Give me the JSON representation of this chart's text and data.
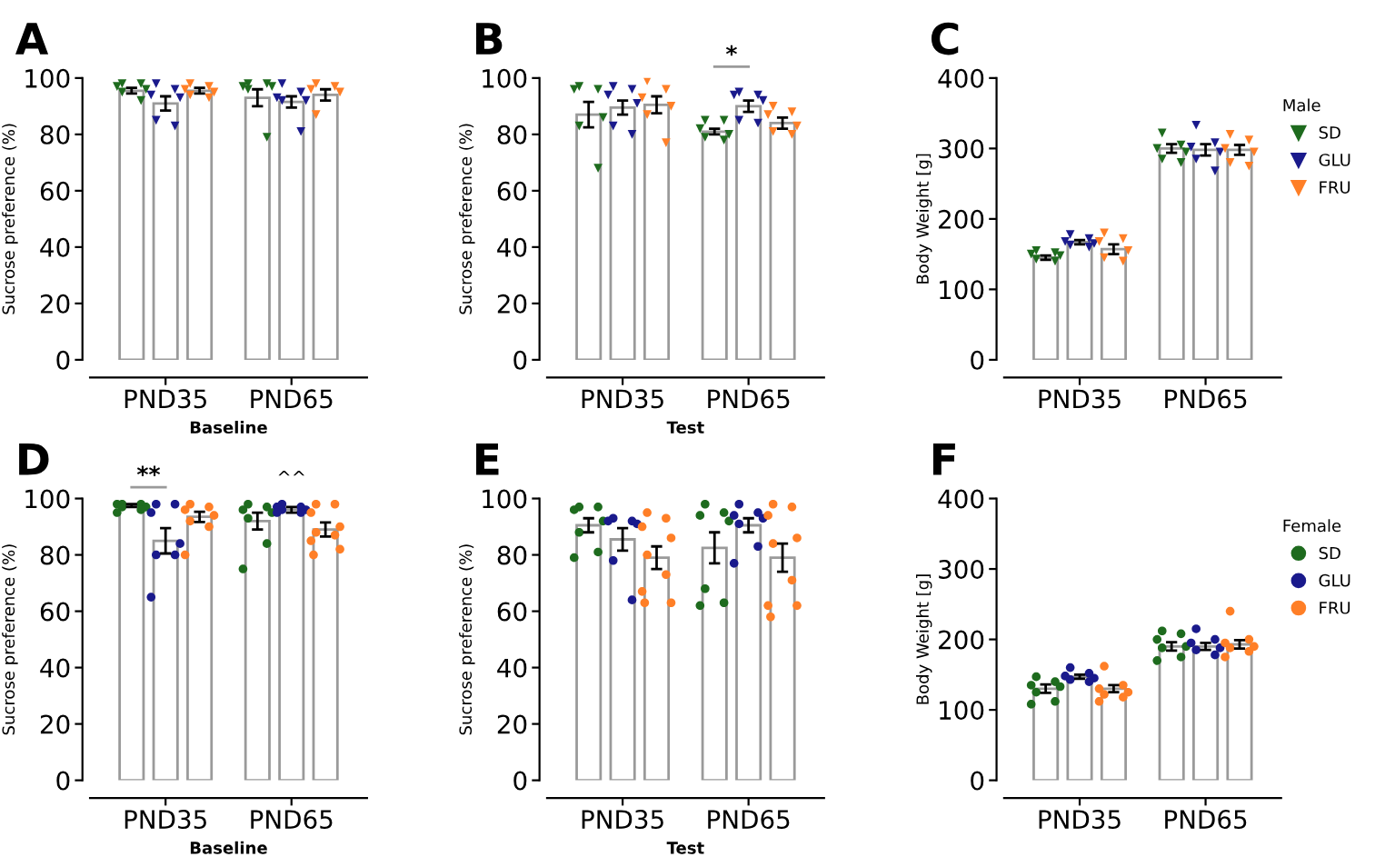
{
  "chart_data": [
    {
      "type": "bar",
      "title": "A",
      "xlabel": "Baseline",
      "ylabel": "Sucrose preference (%)",
      "categories": [
        "PND35",
        "PND65"
      ],
      "ylim": [
        0,
        100
      ],
      "yticks": [
        0,
        20,
        40,
        60,
        80,
        100
      ],
      "legend": false,
      "series": [
        {
          "color": "#ffffff",
          "values": [
            95.5,
            93
          ],
          "errors": [
            1,
            3
          ]
        },
        {
          "color": "#ffffff",
          "values": [
            91,
            91.5
          ],
          "errors": [
            2.5,
            2
          ]
        },
        {
          "color": "#ffffff",
          "values": [
            95.5,
            94
          ],
          "errors": [
            1,
            2
          ]
        },
        {
          "type": "scatter",
          "marker": "triangle",
          "color": "#1e6b1e",
          "x": [
            "PND35",
            "PND35",
            "PND35",
            "PND35",
            "PND35",
            "PND35",
            "PND65",
            "PND65",
            "PND65",
            "PND65",
            "PND65",
            "PND65"
          ],
          "values": [
            98,
            98,
            97,
            96,
            95,
            92,
            98,
            98,
            97,
            97,
            96,
            79
          ]
        },
        {
          "type": "scatter",
          "marker": "triangle",
          "color": "#1a1a8c",
          "x": [
            "PND35",
            "PND35",
            "PND35",
            "PND35",
            "PND35",
            "PND35",
            "PND65",
            "PND65",
            "PND65",
            "PND65",
            "PND65",
            "PND65"
          ],
          "values": [
            98,
            96,
            94,
            93,
            85,
            83,
            98,
            95,
            93,
            92,
            92,
            81
          ]
        },
        {
          "type": "scatter",
          "marker": "triangle",
          "color": "#ff7f27",
          "x": [
            "PND35",
            "PND35",
            "PND35",
            "PND35",
            "PND35",
            "PND35",
            "PND65",
            "PND65",
            "PND65",
            "PND65",
            "PND65"
          ],
          "values": [
            98,
            97,
            96,
            95,
            94,
            93,
            98,
            97,
            96,
            95,
            87
          ]
        }
      ]
    },
    {
      "type": "bar",
      "title": "B",
      "xlabel": "Test",
      "ylabel": "Sucrose preference (%)",
      "categories": [
        "PND35",
        "PND65"
      ],
      "ylim": [
        0,
        100
      ],
      "yticks": [
        0,
        20,
        40,
        60,
        80,
        100
      ],
      "legend": false,
      "annotations": [
        "*"
      ],
      "series": [
        {
          "color": "#ffffff",
          "values": [
            87,
            81
          ],
          "errors": [
            4.5,
            1
          ]
        },
        {
          "color": "#ffffff",
          "values": [
            89.5,
            90
          ],
          "errors": [
            2.5,
            2
          ]
        },
        {
          "color": "#ffffff",
          "values": [
            90.5,
            84
          ],
          "errors": [
            3,
            2
          ]
        },
        {
          "type": "scatter",
          "marker": "triangle",
          "color": "#1e6b1e",
          "x": [
            "PND35",
            "PND35",
            "PND35",
            "PND35",
            "PND35",
            "PND35",
            "PND65",
            "PND65",
            "PND65",
            "PND65",
            "PND65",
            "PND65"
          ],
          "values": [
            97,
            96,
            96,
            86,
            83,
            68,
            85,
            85,
            82,
            80,
            79,
            78
          ]
        },
        {
          "type": "scatter",
          "marker": "triangle",
          "color": "#1a1a8c",
          "x": [
            "PND35",
            "PND35",
            "PND35",
            "PND35",
            "PND35",
            "PND35",
            "PND65",
            "PND65",
            "PND65",
            "PND65",
            "PND65",
            "PND65"
          ],
          "values": [
            97,
            96,
            94,
            91,
            83,
            80,
            95,
            94,
            94,
            92,
            85,
            84
          ]
        },
        {
          "type": "scatter",
          "marker": "triangle",
          "color": "#ff7f27",
          "x": [
            "PND35",
            "PND35",
            "PND35",
            "PND35",
            "PND35",
            "PND35",
            "PND65",
            "PND65",
            "PND65",
            "PND65",
            "PND65",
            "PND65"
          ],
          "values": [
            99,
            96,
            93,
            90,
            87,
            77,
            90,
            88,
            87,
            83,
            81,
            80
          ]
        }
      ]
    },
    {
      "type": "bar",
      "title": "C",
      "ylabel": "Body Weight [g]",
      "categories": [
        "PND35",
        "PND65"
      ],
      "ylim": [
        0,
        400
      ],
      "yticks": [
        0,
        100,
        200,
        300,
        400
      ],
      "legend": "right",
      "legend_title": "Male",
      "series": [
        {
          "color": "#ffffff",
          "values": [
            145,
            300
          ],
          "errors": [
            3,
            6
          ]
        },
        {
          "color": "#ffffff",
          "values": [
            167,
            298
          ],
          "errors": [
            3,
            8
          ]
        },
        {
          "color": "#ffffff",
          "values": [
            157,
            298
          ],
          "errors": [
            7,
            7
          ]
        },
        {
          "type": "scatter",
          "name": "SD",
          "marker": "triangle",
          "color": "#1e6b1e",
          "x": [
            "PND35",
            "PND35",
            "PND35",
            "PND35",
            "PND35",
            "PND35",
            "PND65",
            "PND65",
            "PND65",
            "PND65",
            "PND65",
            "PND65"
          ],
          "values": [
            155,
            152,
            150,
            148,
            143,
            140,
            322,
            305,
            300,
            295,
            285,
            280
          ]
        },
        {
          "type": "scatter",
          "name": "GLU",
          "marker": "triangle",
          "color": "#1a1a8c",
          "x": [
            "PND35",
            "PND35",
            "PND35",
            "PND35",
            "PND35",
            "PND35",
            "PND65",
            "PND65",
            "PND65",
            "PND65",
            "PND65",
            "PND65"
          ],
          "values": [
            178,
            172,
            168,
            165,
            163,
            160,
            333,
            308,
            302,
            295,
            285,
            268
          ]
        },
        {
          "type": "scatter",
          "name": "FRU",
          "marker": "triangle",
          "color": "#ff7f27",
          "x": [
            "PND35",
            "PND35",
            "PND35",
            "PND35",
            "PND35",
            "PND35",
            "PND65",
            "PND65",
            "PND65",
            "PND65",
            "PND65",
            "PND65"
          ],
          "values": [
            180,
            172,
            168,
            155,
            145,
            140,
            320,
            312,
            300,
            295,
            280,
            275
          ]
        }
      ]
    },
    {
      "type": "bar",
      "title": "D",
      "xlabel": "Baseline",
      "ylabel": "Sucrose preference (%)",
      "categories": [
        "PND35",
        "PND65"
      ],
      "ylim": [
        0,
        100
      ],
      "yticks": [
        0,
        20,
        40,
        60,
        80,
        100
      ],
      "legend": false,
      "annotations": [
        "**",
        "^^"
      ],
      "series": [
        {
          "color": "#ffffff",
          "values": [
            97.5,
            92
          ],
          "errors": [
            0.5,
            3
          ]
        },
        {
          "color": "#ffffff",
          "values": [
            85,
            96
          ],
          "errors": [
            4.5,
            1
          ]
        },
        {
          "color": "#ffffff",
          "values": [
            93.5,
            89
          ],
          "errors": [
            1.8,
            2.5
          ]
        },
        {
          "type": "scatter",
          "marker": "circle",
          "color": "#1e6b1e",
          "x": [
            "PND35",
            "PND35",
            "PND35",
            "PND35",
            "PND35",
            "PND35",
            "PND35",
            "PND65",
            "PND65",
            "PND65",
            "PND65",
            "PND65",
            "PND65",
            "PND65"
          ],
          "values": [
            98,
            98,
            98,
            97,
            97,
            96,
            95,
            98,
            97,
            96,
            95,
            93,
            84,
            75
          ]
        },
        {
          "type": "scatter",
          "marker": "circle",
          "color": "#1a1a8c",
          "x": [
            "PND35",
            "PND35",
            "PND35",
            "PND35",
            "PND35",
            "PND35",
            "PND35",
            "PND65",
            "PND65",
            "PND65",
            "PND65",
            "PND65",
            "PND65",
            "PND65"
          ],
          "values": [
            98,
            98,
            95,
            84,
            80,
            80,
            65,
            98,
            97,
            97,
            96,
            96,
            95,
            95
          ]
        },
        {
          "type": "scatter",
          "marker": "circle",
          "color": "#ff7f27",
          "x": [
            "PND35",
            "PND35",
            "PND35",
            "PND35",
            "PND35",
            "PND35",
            "PND35",
            "PND65",
            "PND65",
            "PND65",
            "PND65",
            "PND65",
            "PND65",
            "PND65",
            "PND65",
            "PND65"
          ],
          "values": [
            98,
            97,
            96,
            94,
            92,
            90,
            80,
            98,
            98,
            95,
            90,
            88,
            87,
            85,
            82,
            80
          ]
        }
      ]
    },
    {
      "type": "bar",
      "title": "E",
      "xlabel": "Test",
      "ylabel": "Sucrose preference (%)",
      "categories": [
        "PND35",
        "PND65"
      ],
      "ylim": [
        0,
        100
      ],
      "yticks": [
        0,
        20,
        40,
        60,
        80,
        100
      ],
      "legend": false,
      "series": [
        {
          "color": "#ffffff",
          "values": [
            90.5,
            82.5
          ],
          "errors": [
            2.5,
            5.5
          ]
        },
        {
          "color": "#ffffff",
          "values": [
            85.5,
            90.5
          ],
          "errors": [
            4,
            2.5
          ]
        },
        {
          "color": "#ffffff",
          "values": [
            79,
            79
          ],
          "errors": [
            4,
            5
          ]
        },
        {
          "type": "scatter",
          "marker": "circle",
          "color": "#1e6b1e",
          "x": [
            "PND35",
            "PND35",
            "PND35",
            "PND35",
            "PND35",
            "PND35",
            "PND35",
            "PND65",
            "PND65",
            "PND65",
            "PND65",
            "PND65",
            "PND65",
            "PND65"
          ],
          "values": [
            97,
            97,
            96,
            92,
            88,
            81,
            79,
            98,
            95,
            94,
            92,
            68,
            63,
            62
          ]
        },
        {
          "type": "scatter",
          "marker": "circle",
          "color": "#1a1a8c",
          "x": [
            "PND35",
            "PND35",
            "PND35",
            "PND35",
            "PND35",
            "PND35",
            "PND65",
            "PND65",
            "PND65",
            "PND65",
            "PND65",
            "PND65",
            "PND65"
          ],
          "values": [
            93,
            92,
            92,
            91,
            78,
            64,
            98,
            95,
            94,
            93,
            91,
            83,
            77
          ]
        },
        {
          "type": "scatter",
          "marker": "circle",
          "color": "#ff7f27",
          "x": [
            "PND35",
            "PND35",
            "PND35",
            "PND35",
            "PND35",
            "PND35",
            "PND35",
            "PND35",
            "PND35",
            "PND65",
            "PND65",
            "PND65",
            "PND65",
            "PND65",
            "PND65",
            "PND65",
            "PND65",
            "PND65"
          ],
          "values": [
            95,
            93,
            90,
            86,
            80,
            73,
            67,
            63,
            63,
            98,
            97,
            94,
            86,
            84,
            71,
            62,
            62,
            58
          ]
        }
      ]
    },
    {
      "type": "bar",
      "title": "F",
      "ylabel": "Body Weight [g]",
      "categories": [
        "PND35",
        "PND65"
      ],
      "ylim": [
        0,
        400
      ],
      "yticks": [
        0,
        100,
        200,
        300,
        400
      ],
      "legend": "right",
      "legend_title": "Female",
      "series": [
        {
          "color": "#ffffff",
          "values": [
            130,
            190
          ],
          "errors": [
            6,
            6
          ]
        },
        {
          "color": "#ffffff",
          "values": [
            147,
            190
          ],
          "errors": [
            3,
            5
          ]
        },
        {
          "color": "#ffffff",
          "values": [
            130,
            193
          ],
          "errors": [
            5,
            6
          ]
        },
        {
          "type": "scatter",
          "name": "SD",
          "marker": "circle",
          "color": "#1e6b1e",
          "x": [
            "PND35",
            "PND35",
            "PND35",
            "PND35",
            "PND35",
            "PND35",
            "PND35",
            "PND65",
            "PND65",
            "PND65",
            "PND65",
            "PND65",
            "PND65",
            "PND65"
          ],
          "values": [
            147,
            140,
            135,
            133,
            125,
            112,
            108,
            212,
            208,
            200,
            190,
            188,
            175,
            170
          ]
        },
        {
          "type": "scatter",
          "name": "GLU",
          "marker": "circle",
          "color": "#1a1a8c",
          "x": [
            "PND35",
            "PND35",
            "PND35",
            "PND35",
            "PND35",
            "PND35",
            "PND65",
            "PND65",
            "PND65",
            "PND65",
            "PND65",
            "PND65"
          ],
          "values": [
            160,
            152,
            148,
            145,
            143,
            140,
            215,
            200,
            195,
            188,
            185,
            178
          ]
        },
        {
          "type": "scatter",
          "name": "FRU",
          "marker": "circle",
          "color": "#ff7f27",
          "x": [
            "PND35",
            "PND35",
            "PND35",
            "PND35",
            "PND35",
            "PND35",
            "PND35",
            "PND65",
            "PND65",
            "PND65",
            "PND65",
            "PND65",
            "PND65",
            "PND65"
          ],
          "values": [
            162,
            135,
            130,
            125,
            122,
            118,
            112,
            240,
            200,
            195,
            190,
            188,
            183,
            175
          ]
        }
      ]
    }
  ]
}
